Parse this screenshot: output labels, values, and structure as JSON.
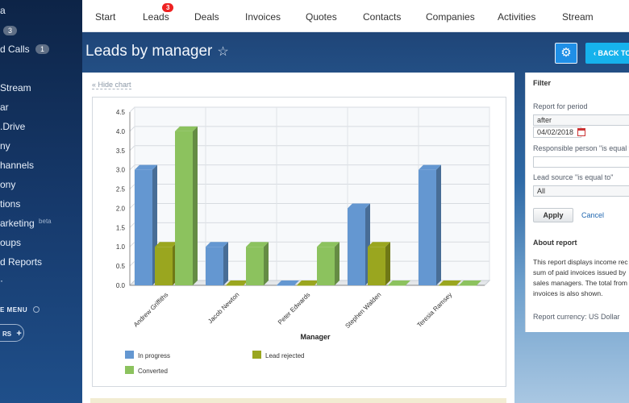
{
  "sidebar": {
    "items": [
      {
        "label": "a"
      },
      {
        "label": "",
        "badge": "3"
      },
      {
        "label": "d Calls",
        "badge": "1"
      },
      {
        "label": "Stream"
      },
      {
        "label": "ar"
      },
      {
        "label": ".Drive"
      },
      {
        "label": "ny"
      },
      {
        "label": "hannels"
      },
      {
        "label": "ony"
      },
      {
        "label": "tions"
      },
      {
        "label": "arketing",
        "sup": "beta"
      },
      {
        "label": "oups"
      },
      {
        "label": "d Reports"
      }
    ],
    "menu_label": "E MENU",
    "pill_label": "RS"
  },
  "topnav": {
    "items": [
      "Start",
      "Leads",
      "Deals",
      "Invoices",
      "Quotes",
      "Contacts",
      "Companies",
      "Activities",
      "Stream"
    ],
    "leads_badge": "3"
  },
  "header": {
    "title": "Leads by manager",
    "star": "☆",
    "back_label": "BACK TO",
    "gear_icon": "gear-icon"
  },
  "main": {
    "hide_chart": "« Hide chart"
  },
  "chart_data": {
    "type": "bar",
    "categories": [
      "Andrew Griffiths",
      "Jacob Newton",
      "Peter Edwards",
      "Stephen Walden",
      "Teresia Ramsey"
    ],
    "series": [
      {
        "name": "In progress",
        "color": "#6497d1",
        "values": [
          3,
          1,
          0,
          2,
          3
        ]
      },
      {
        "name": "Lead rejected",
        "color": "#9aa61f",
        "values": [
          1,
          0,
          0,
          1,
          0
        ]
      },
      {
        "name": "Converted",
        "color": "#8cc25e",
        "values": [
          4,
          1,
          1,
          0,
          0
        ]
      }
    ],
    "xlabel": "Manager",
    "ylabel": "",
    "ylim": [
      0,
      4.5
    ],
    "yticks": [
      "0.0",
      "0.5",
      "1.0",
      "1.5",
      "2.0",
      "2.5",
      "3.0",
      "3.5",
      "4.0",
      "4.5"
    ],
    "grid": true,
    "legend": "bottom"
  },
  "filter": {
    "title": "Filter",
    "period_label": "Report for period",
    "period_value": "after",
    "date_value": "04/02/2018",
    "responsible_label": "Responsible person \"is equal to\"",
    "responsible_value": "",
    "source_label": "Lead source \"is equal to\"",
    "source_value": "All",
    "apply": "Apply",
    "cancel": "Cancel",
    "about_title": "About report",
    "about_lines": [
      "This report displays income rec",
      "sum of paid invoices issued by",
      "sales managers. The total from",
      "invoices is also shown."
    ],
    "currency": "Report currency: US Dollar"
  }
}
